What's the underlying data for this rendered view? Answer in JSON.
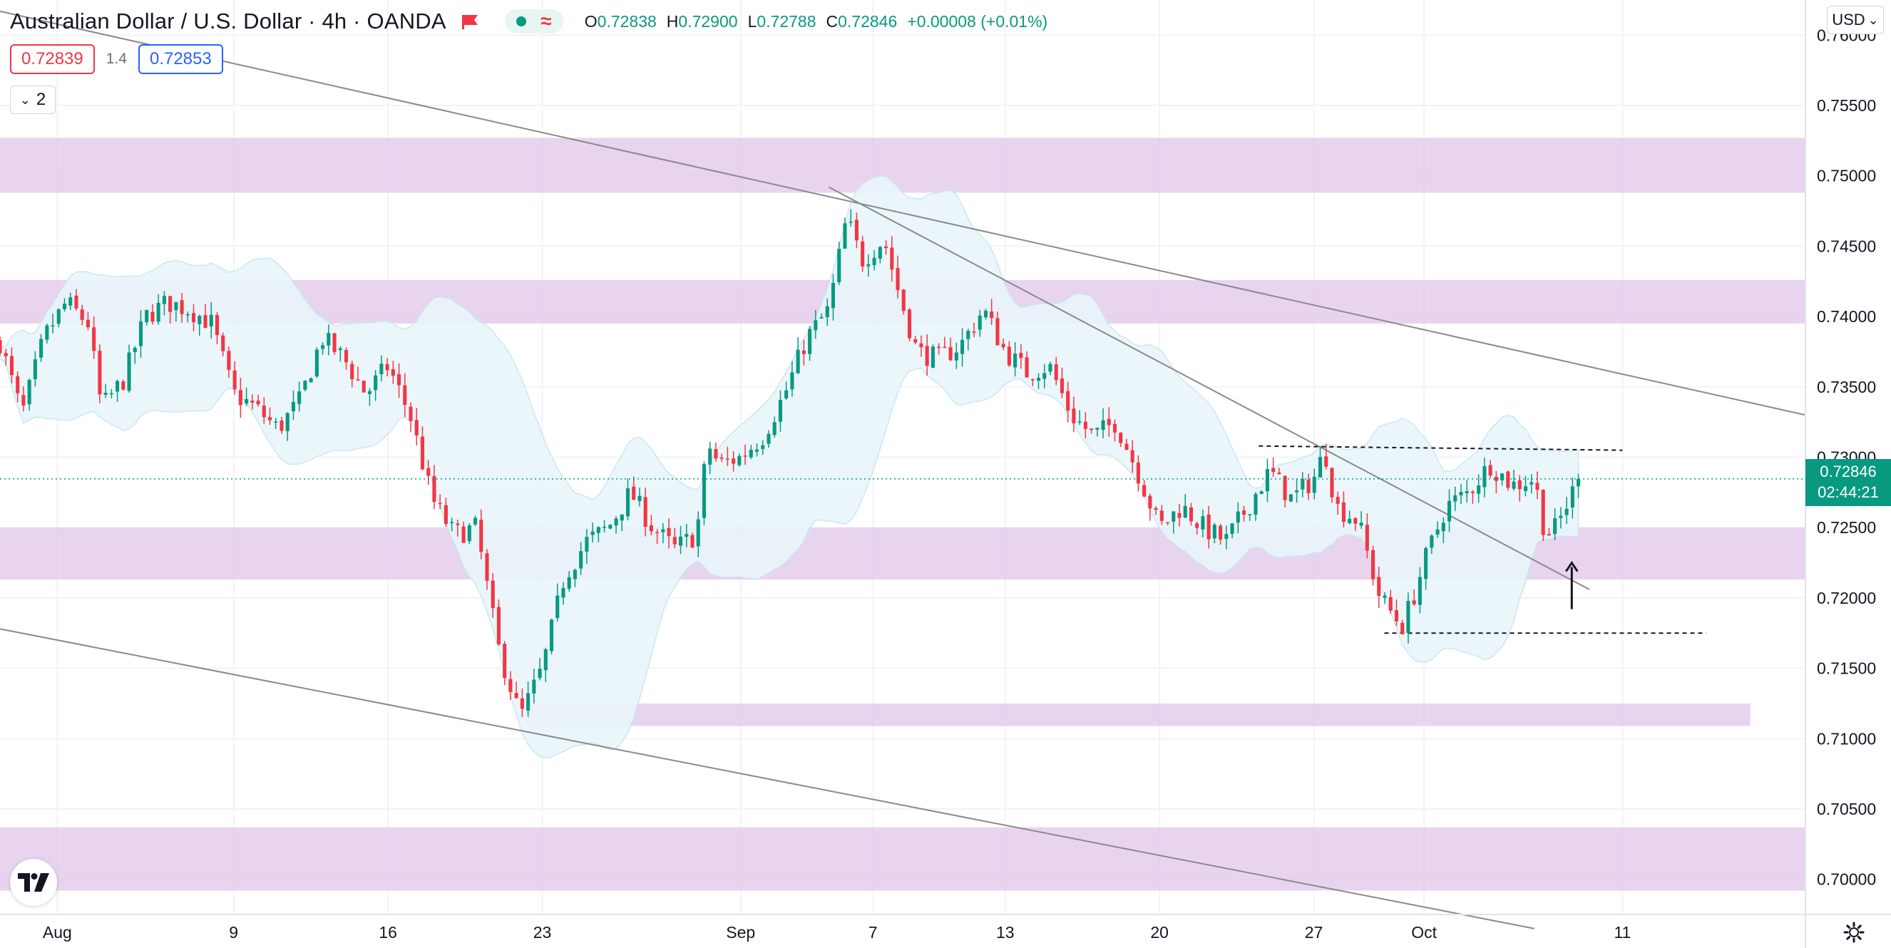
{
  "header": {
    "title": "Australian Dollar / U.S. Dollar · 4h · OANDA",
    "ohlc": [
      {
        "k": "O",
        "v": "0.72838"
      },
      {
        "k": "H",
        "v": "0.72900"
      },
      {
        "k": "L",
        "v": "0.72788"
      },
      {
        "k": "C",
        "v": "0.72846"
      },
      {
        "k": "",
        "v": "+0.00008 (+0.01%)"
      }
    ]
  },
  "trade": {
    "bid": "0.72839",
    "spread": "1.4",
    "ask": "0.72853"
  },
  "indicators_collapse": {
    "count": "2"
  },
  "currency_selector": {
    "label": "USD"
  },
  "last_price": {
    "price": "0.72846",
    "countdown": "02:44:21"
  },
  "colors": {
    "up": "#089981",
    "down": "#f23645",
    "zone": "#e2c6ea",
    "bollinger": "#e8f6fa",
    "trendline": "#8a8a8a",
    "grid": "#f0f3fa"
  },
  "icons": [
    "flag-icon",
    "dot-icon",
    "wave-icon",
    "chevron-down-icon",
    "tradingview-logo-icon",
    "gear-icon",
    "arrow-up-icon"
  ],
  "chart_data": {
    "type": "candlestick",
    "instrument": "Australian Dollar / U.S. Dollar",
    "timeframe": "4h",
    "source": "OANDA",
    "ylim": [
      0.6975,
      0.7625
    ],
    "y_ticks": [
      "0.76000",
      "0.75500",
      "0.75000",
      "0.74500",
      "0.74000",
      "0.73500",
      "0.73000",
      "0.72500",
      "0.72000",
      "0.71500",
      "0.71000",
      "0.70500",
      "0.70000"
    ],
    "x_ticks": [
      "Aug",
      "9",
      "16",
      "23",
      "Sep",
      "7",
      "13",
      "20",
      "27",
      "Oct",
      "11"
    ],
    "x_tick_days": [
      1,
      9,
      16,
      23,
      32,
      38,
      44,
      51,
      58,
      63,
      72
    ],
    "x_range_days": [
      -1.6,
      80.3
    ],
    "price_path": [
      [
        -1.6,
        0.7382
      ],
      [
        -0.6,
        0.733
      ],
      [
        0.4,
        0.7385
      ],
      [
        1.4,
        0.741
      ],
      [
        2.4,
        0.7395
      ],
      [
        3.0,
        0.7335
      ],
      [
        4.0,
        0.7355
      ],
      [
        5.0,
        0.74
      ],
      [
        6.0,
        0.741
      ],
      [
        7.0,
        0.7405
      ],
      [
        8.0,
        0.7395
      ],
      [
        9.0,
        0.7345
      ],
      [
        10.0,
        0.7335
      ],
      [
        11.0,
        0.732
      ],
      [
        12.0,
        0.734
      ],
      [
        13.0,
        0.7385
      ],
      [
        14.0,
        0.737
      ],
      [
        15.0,
        0.7345
      ],
      [
        16.0,
        0.7365
      ],
      [
        17.0,
        0.733
      ],
      [
        18.0,
        0.727
      ],
      [
        19.0,
        0.7245
      ],
      [
        20.0,
        0.725
      ],
      [
        21.0,
        0.7165
      ],
      [
        22.0,
        0.7115
      ],
      [
        23.0,
        0.715
      ],
      [
        24.0,
        0.7215
      ],
      [
        25.0,
        0.724
      ],
      [
        26.0,
        0.725
      ],
      [
        27.0,
        0.7275
      ],
      [
        28.0,
        0.725
      ],
      [
        29.0,
        0.7235
      ],
      [
        30.0,
        0.7245
      ],
      [
        30.5,
        0.731
      ],
      [
        31.0,
        0.7295
      ],
      [
        32.0,
        0.73
      ],
      [
        33.0,
        0.7315
      ],
      [
        34.0,
        0.7345
      ],
      [
        35.0,
        0.7385
      ],
      [
        36.0,
        0.7405
      ],
      [
        36.8,
        0.747
      ],
      [
        37.5,
        0.744
      ],
      [
        38.5,
        0.7455
      ],
      [
        39.2,
        0.7415
      ],
      [
        40.0,
        0.7375
      ],
      [
        41.0,
        0.737
      ],
      [
        42.0,
        0.738
      ],
      [
        43.0,
        0.7405
      ],
      [
        44.0,
        0.7375
      ],
      [
        45.0,
        0.736
      ],
      [
        46.0,
        0.7365
      ],
      [
        47.0,
        0.733
      ],
      [
        48.0,
        0.7315
      ],
      [
        49.0,
        0.7325
      ],
      [
        50.0,
        0.729
      ],
      [
        51.0,
        0.725
      ],
      [
        52.0,
        0.7265
      ],
      [
        53.0,
        0.725
      ],
      [
        54.0,
        0.724
      ],
      [
        55.0,
        0.7265
      ],
      [
        56.0,
        0.729
      ],
      [
        57.0,
        0.727
      ],
      [
        58.0,
        0.7285
      ],
      [
        58.5,
        0.7305
      ],
      [
        59.0,
        0.7265
      ],
      [
        60.0,
        0.7255
      ],
      [
        61.0,
        0.72
      ],
      [
        62.0,
        0.718
      ],
      [
        62.5,
        0.72
      ],
      [
        63.0,
        0.7225
      ],
      [
        64.0,
        0.7265
      ],
      [
        65.0,
        0.7275
      ],
      [
        66.0,
        0.7295
      ],
      [
        67.0,
        0.728
      ],
      [
        68.0,
        0.7285
      ],
      [
        68.5,
        0.7245
      ],
      [
        69.0,
        0.725
      ],
      [
        70.0,
        0.72846
      ]
    ],
    "candle_count": 270,
    "last_close": 0.72846,
    "zones": [
      {
        "from": 0.7488,
        "to": 0.7527,
        "start_day": -1.6,
        "end_day": 80.3
      },
      {
        "from": 0.7395,
        "to": 0.7426,
        "start_day": -1.6,
        "end_day": 80.3
      },
      {
        "from": 0.7213,
        "to": 0.725,
        "start_day": -1.6,
        "end_day": 80.3
      },
      {
        "from": 0.7109,
        "to": 0.7125,
        "start_day": 22.3,
        "end_day": 77.8
      },
      {
        "from": 0.6992,
        "to": 0.7037,
        "start_day": -1.6,
        "end_day": 80.3
      }
    ],
    "trendlines": [
      {
        "style": "solid",
        "p1": [
          -1.6,
          0.7617
        ],
        "p2": [
          80.3,
          0.733
        ]
      },
      {
        "style": "solid",
        "p1": [
          -1.6,
          0.7178
        ],
        "p2": [
          68.0,
          0.6965
        ]
      },
      {
        "style": "solid",
        "p1": [
          36.0,
          0.7492
        ],
        "p2": [
          70.5,
          0.7206
        ]
      },
      {
        "style": "dashed",
        "p1": [
          55.5,
          0.7308
        ],
        "p2": [
          72.0,
          0.7305
        ]
      },
      {
        "style": "dashed",
        "p1": [
          61.2,
          0.7175
        ],
        "p2": [
          75.8,
          0.7175
        ]
      }
    ],
    "annotations": [
      {
        "type": "arrow-up",
        "day": 69.7,
        "from": 0.7192,
        "to": 0.7225
      }
    ]
  }
}
